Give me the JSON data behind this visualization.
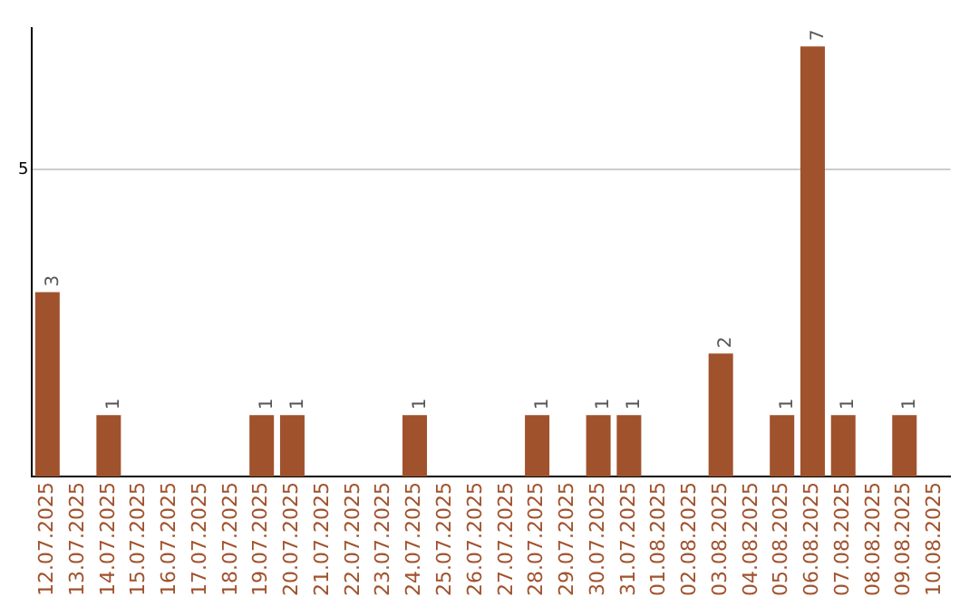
{
  "chart_data": {
    "type": "bar",
    "categories": [
      "12.07.2025",
      "13.07.2025",
      "14.07.2025",
      "15.07.2025",
      "16.07.2025",
      "17.07.2025",
      "18.07.2025",
      "19.07.2025",
      "20.07.2025",
      "21.07.2025",
      "22.07.2025",
      "23.07.2025",
      "24.07.2025",
      "25.07.2025",
      "26.07.2025",
      "27.07.2025",
      "28.07.2025",
      "29.07.2025",
      "30.07.2025",
      "31.07.2025",
      "01.08.2025",
      "02.08.2025",
      "03.08.2025",
      "04.08.2025",
      "05.08.2025",
      "06.08.2025",
      "07.08.2025",
      "08.08.2025",
      "09.08.2025",
      "10.08.2025"
    ],
    "values": [
      3,
      0,
      1,
      0,
      0,
      0,
      0,
      1,
      1,
      0,
      0,
      0,
      1,
      0,
      0,
      0,
      1,
      0,
      1,
      1,
      0,
      0,
      2,
      0,
      1,
      7,
      1,
      0,
      1,
      0
    ],
    "value_labels": [
      "3",
      null,
      "1",
      null,
      null,
      null,
      null,
      "1",
      "1",
      null,
      null,
      null,
      "1",
      null,
      null,
      null,
      "1",
      null,
      "1",
      "1",
      null,
      null,
      "2",
      null,
      "1",
      "7",
      "1",
      null,
      "1",
      null
    ],
    "color": "#a0522d",
    "ylim": [
      0,
      7.3
    ],
    "yticks": [
      5
    ],
    "grid": "y",
    "legend": false
  }
}
